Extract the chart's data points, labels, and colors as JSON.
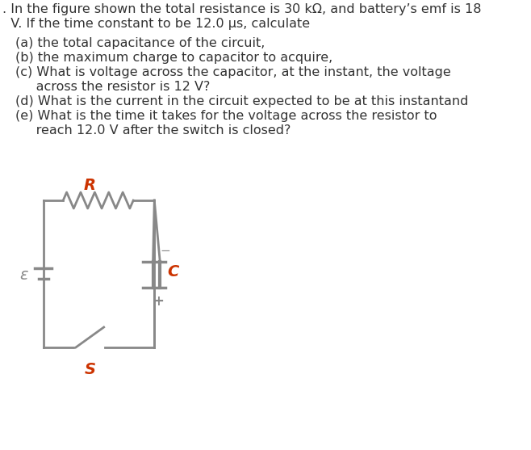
{
  "background_color": "#ffffff",
  "fig_width": 6.58,
  "fig_height": 5.57,
  "dpi": 100,
  "text_color": "#333333",
  "intro_line1": ". In the figure shown the total resistance is 30 kΩ, and battery’s emf is 18",
  "intro_line2": "  V. If the time constant to be 12.0 µs, calculate",
  "part_a": "(a) the total capacitance of the circuit,",
  "part_b": "(b) the maximum charge to capacitor to acquire,",
  "part_c1": "(c) What is voltage across the capacitor, at the instant, the voltage",
  "part_c2": "     across the resistor is 12 V?",
  "part_d": "(d) What is the current in the circuit expected to be at this instantand",
  "part_e1": "(e) What is the time it takes for the voltage across the resistor to",
  "part_e2": "     reach 12.0 V after the switch is closed?",
  "label_R": "R",
  "label_C": "C",
  "label_emf": "ε",
  "label_S": "S",
  "label_minus": "−",
  "label_plus": "+",
  "circuit_color": "#888888",
  "label_color_R": "#cc3300",
  "label_color_C": "#cc3300",
  "label_color_emf": "#888888",
  "label_color_S": "#cc3300"
}
